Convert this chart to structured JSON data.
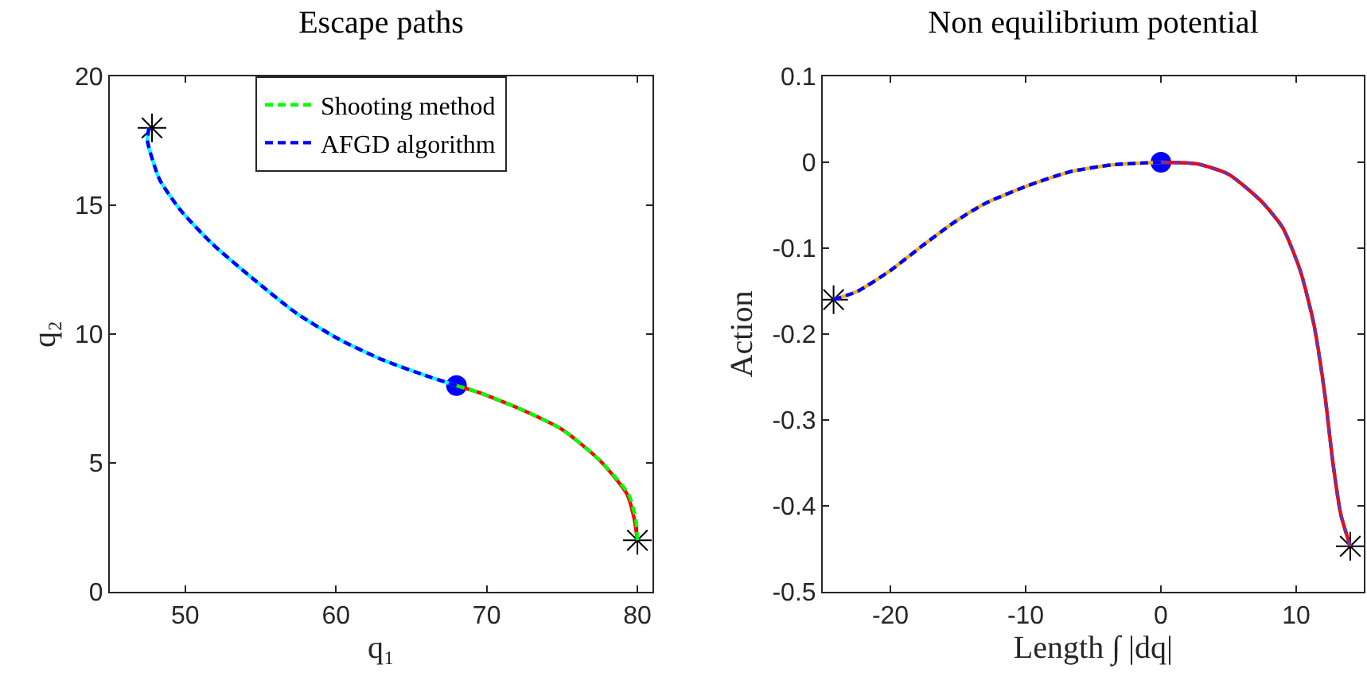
{
  "chart_data": [
    {
      "type": "line",
      "title": "Escape paths",
      "xlabel": "q₁",
      "ylabel": "q₂",
      "xlim": [
        45,
        81
      ],
      "ylim": [
        0,
        20
      ],
      "xticks": [
        50,
        60,
        70,
        80
      ],
      "yticks": [
        0,
        5,
        10,
        15,
        20
      ],
      "grid": false,
      "legend": "top",
      "series": [
        {
          "color": "#00ffff",
          "line_style": "solid",
          "marker": "none",
          "x": [
            47.6,
            47.5,
            48.3,
            49.7,
            51.8,
            54.6,
            57.4,
            60.2,
            63.1,
            65.9,
            68
          ],
          "values": [
            18.0,
            17.5,
            16.0,
            14.8,
            13.5,
            12.1,
            10.8,
            9.8,
            9.0,
            8.4,
            8.0
          ]
        },
        {
          "color": "#ff0000",
          "line_style": "solid",
          "marker": "none",
          "x": [
            68,
            69.4,
            72.2,
            75.0,
            77.5,
            79.3,
            79.8,
            80
          ],
          "values": [
            8.0,
            7.75,
            7.1,
            6.3,
            5.1,
            3.8,
            2.8,
            2.0
          ]
        },
        {
          "name": "Shooting method",
          "color": "#00ff00",
          "line_style": "dashed",
          "marker": "none",
          "x": [
            68,
            69.4,
            72.2,
            75.0,
            77.5,
            79.4,
            79.9,
            80
          ],
          "values": [
            8.0,
            7.75,
            7.1,
            6.3,
            5.1,
            3.8,
            2.8,
            2.0
          ]
        },
        {
          "name": "AFGD algorithm",
          "color": "#0000ff",
          "line_style": "dashed",
          "marker": "none",
          "x": [
            47.6,
            47.5,
            48.3,
            49.7,
            51.8,
            54.6,
            57.4,
            60.2,
            63.1,
            65.9,
            68
          ],
          "values": [
            18.0,
            17.5,
            16.0,
            14.8,
            13.5,
            12.1,
            10.8,
            9.8,
            9.0,
            8.4,
            8.0
          ]
        },
        {
          "type": "scatter",
          "color": "#000000",
          "marker": "cross",
          "x": [
            47.8,
            80
          ],
          "values": [
            18.0,
            2.0
          ]
        },
        {
          "type": "scatter",
          "color": "#0000ff",
          "marker": "circle",
          "x": [
            68
          ],
          "values": [
            8.0
          ]
        }
      ]
    },
    {
      "type": "line",
      "title": "Non equilibrium potential",
      "xlabel": "Length ∫ |dq|",
      "ylabel": "Action",
      "xlim": [
        -25,
        15
      ],
      "ylim": [
        -0.5,
        0.1
      ],
      "xticks": [
        -20,
        -10,
        0,
        10
      ],
      "yticks": [
        -0.5,
        -0.4,
        -0.3,
        -0.2,
        -0.1,
        0,
        0.1
      ],
      "grid": false,
      "legend": false,
      "series": [
        {
          "color": "#edb120",
          "line_style": "solid",
          "marker": "none",
          "x": [
            -24.2,
            -22.4,
            -20,
            -17.7,
            -15.3,
            -13.0,
            -9.8,
            -6.7,
            -3.6,
            0
          ],
          "values": [
            -0.16,
            -0.15,
            -0.126,
            -0.098,
            -0.07,
            -0.048,
            -0.027,
            -0.011,
            -0.003,
            0
          ]
        },
        {
          "color": "#0000ff",
          "line_style": "dashed",
          "marker": "none",
          "x": [
            -24.2,
            -22.4,
            -20,
            -17.7,
            -15.3,
            -13.0,
            -9.8,
            -6.7,
            -3.6,
            0
          ],
          "values": [
            -0.16,
            -0.15,
            -0.126,
            -0.098,
            -0.07,
            -0.048,
            -0.027,
            -0.011,
            -0.003,
            0
          ]
        },
        {
          "color": "#ff0000",
          "line_style": "solid",
          "marker": "none",
          "x": [
            0,
            2.7,
            5.0,
            7.4,
            9.0,
            10.3,
            11.3,
            12.1,
            12.7,
            13.3,
            14.0
          ],
          "values": [
            0,
            -0.002,
            -0.014,
            -0.045,
            -0.076,
            -0.126,
            -0.188,
            -0.268,
            -0.348,
            -0.41,
            -0.447
          ]
        },
        {
          "color": "#7e2f8e",
          "line_style": "dashed",
          "marker": "none",
          "x": [
            0,
            2.7,
            5.0,
            7.4,
            9.0,
            10.3,
            11.3,
            12.1,
            12.7,
            13.3,
            14.0
          ],
          "values": [
            0,
            -0.002,
            -0.014,
            -0.045,
            -0.076,
            -0.126,
            -0.188,
            -0.268,
            -0.348,
            -0.41,
            -0.447
          ]
        },
        {
          "type": "scatter",
          "color": "#000000",
          "marker": "cross",
          "x": [
            -24.2,
            14.0
          ],
          "values": [
            -0.16,
            -0.447
          ]
        },
        {
          "type": "scatter",
          "color": "#0000ff",
          "marker": "circle",
          "x": [
            0
          ],
          "values": [
            0
          ]
        }
      ]
    }
  ]
}
